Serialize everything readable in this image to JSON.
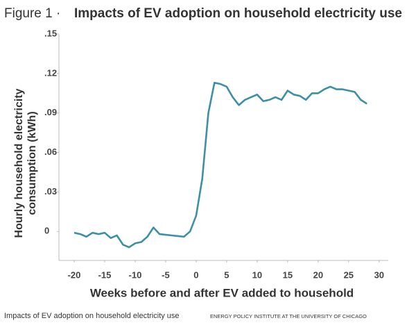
{
  "chart_data": {
    "type": "line",
    "figure_label": "Figure 1 ·",
    "title": "Impacts of EV adoption on household electricity use",
    "x_label": "Weeks before and after EV added to household",
    "y_label": [
      "Hourly household electricity",
      "consumption (kWh)"
    ],
    "x": [
      -20,
      -19,
      -18,
      -17,
      -16,
      -15,
      -14,
      -13,
      -12,
      -11,
      -10,
      -9,
      -8,
      -7,
      -6,
      -5,
      -4,
      -3,
      -2,
      -1,
      0,
      1,
      2,
      3,
      4,
      5,
      6,
      7,
      8,
      9,
      10,
      11,
      12,
      13,
      14,
      15,
      16,
      17,
      18,
      19,
      20,
      21,
      22,
      23,
      24,
      25,
      26,
      27,
      28
    ],
    "values": [
      -0.001,
      -0.002,
      -0.004,
      -0.001,
      -0.002,
      -0.001,
      -0.005,
      -0.003,
      -0.01,
      -0.012,
      -0.009,
      -0.008,
      -0.004,
      0.003,
      -0.002,
      -0.0025,
      -0.003,
      -0.0035,
      -0.004,
      0.0,
      0.012,
      0.04,
      0.09,
      0.113,
      0.112,
      0.11,
      0.102,
      0.096,
      0.1,
      0.102,
      0.104,
      0.099,
      0.1,
      0.102,
      0.1,
      0.107,
      0.104,
      0.103,
      0.1,
      0.105,
      0.105,
      0.108,
      0.11,
      0.108,
      0.108,
      0.107,
      0.106,
      0.1,
      0.097
    ],
    "color": "#3d8fa6",
    "xlim": [
      -22.5,
      31.5
    ],
    "xticks": [
      -20,
      -15,
      -10,
      -5,
      0,
      5,
      10,
      15,
      20,
      25,
      30
    ],
    "ylim": [
      -0.022,
      0.15
    ],
    "yticks": [
      {
        "value": 0.15,
        "label": ".15"
      },
      {
        "value": 0.12,
        "label": ".12"
      },
      {
        "value": 0.09,
        "label": ".09"
      },
      {
        "value": 0.06,
        "label": ".06"
      },
      {
        "value": 0.03,
        "label": ".03"
      },
      0
    ],
    "grid": false,
    "footer": "Impacts of EV adoption on household electricity use",
    "source": "ENERGY POLICY INSTITUTE AT THE UNIVERSITY OF CHICAGO"
  }
}
